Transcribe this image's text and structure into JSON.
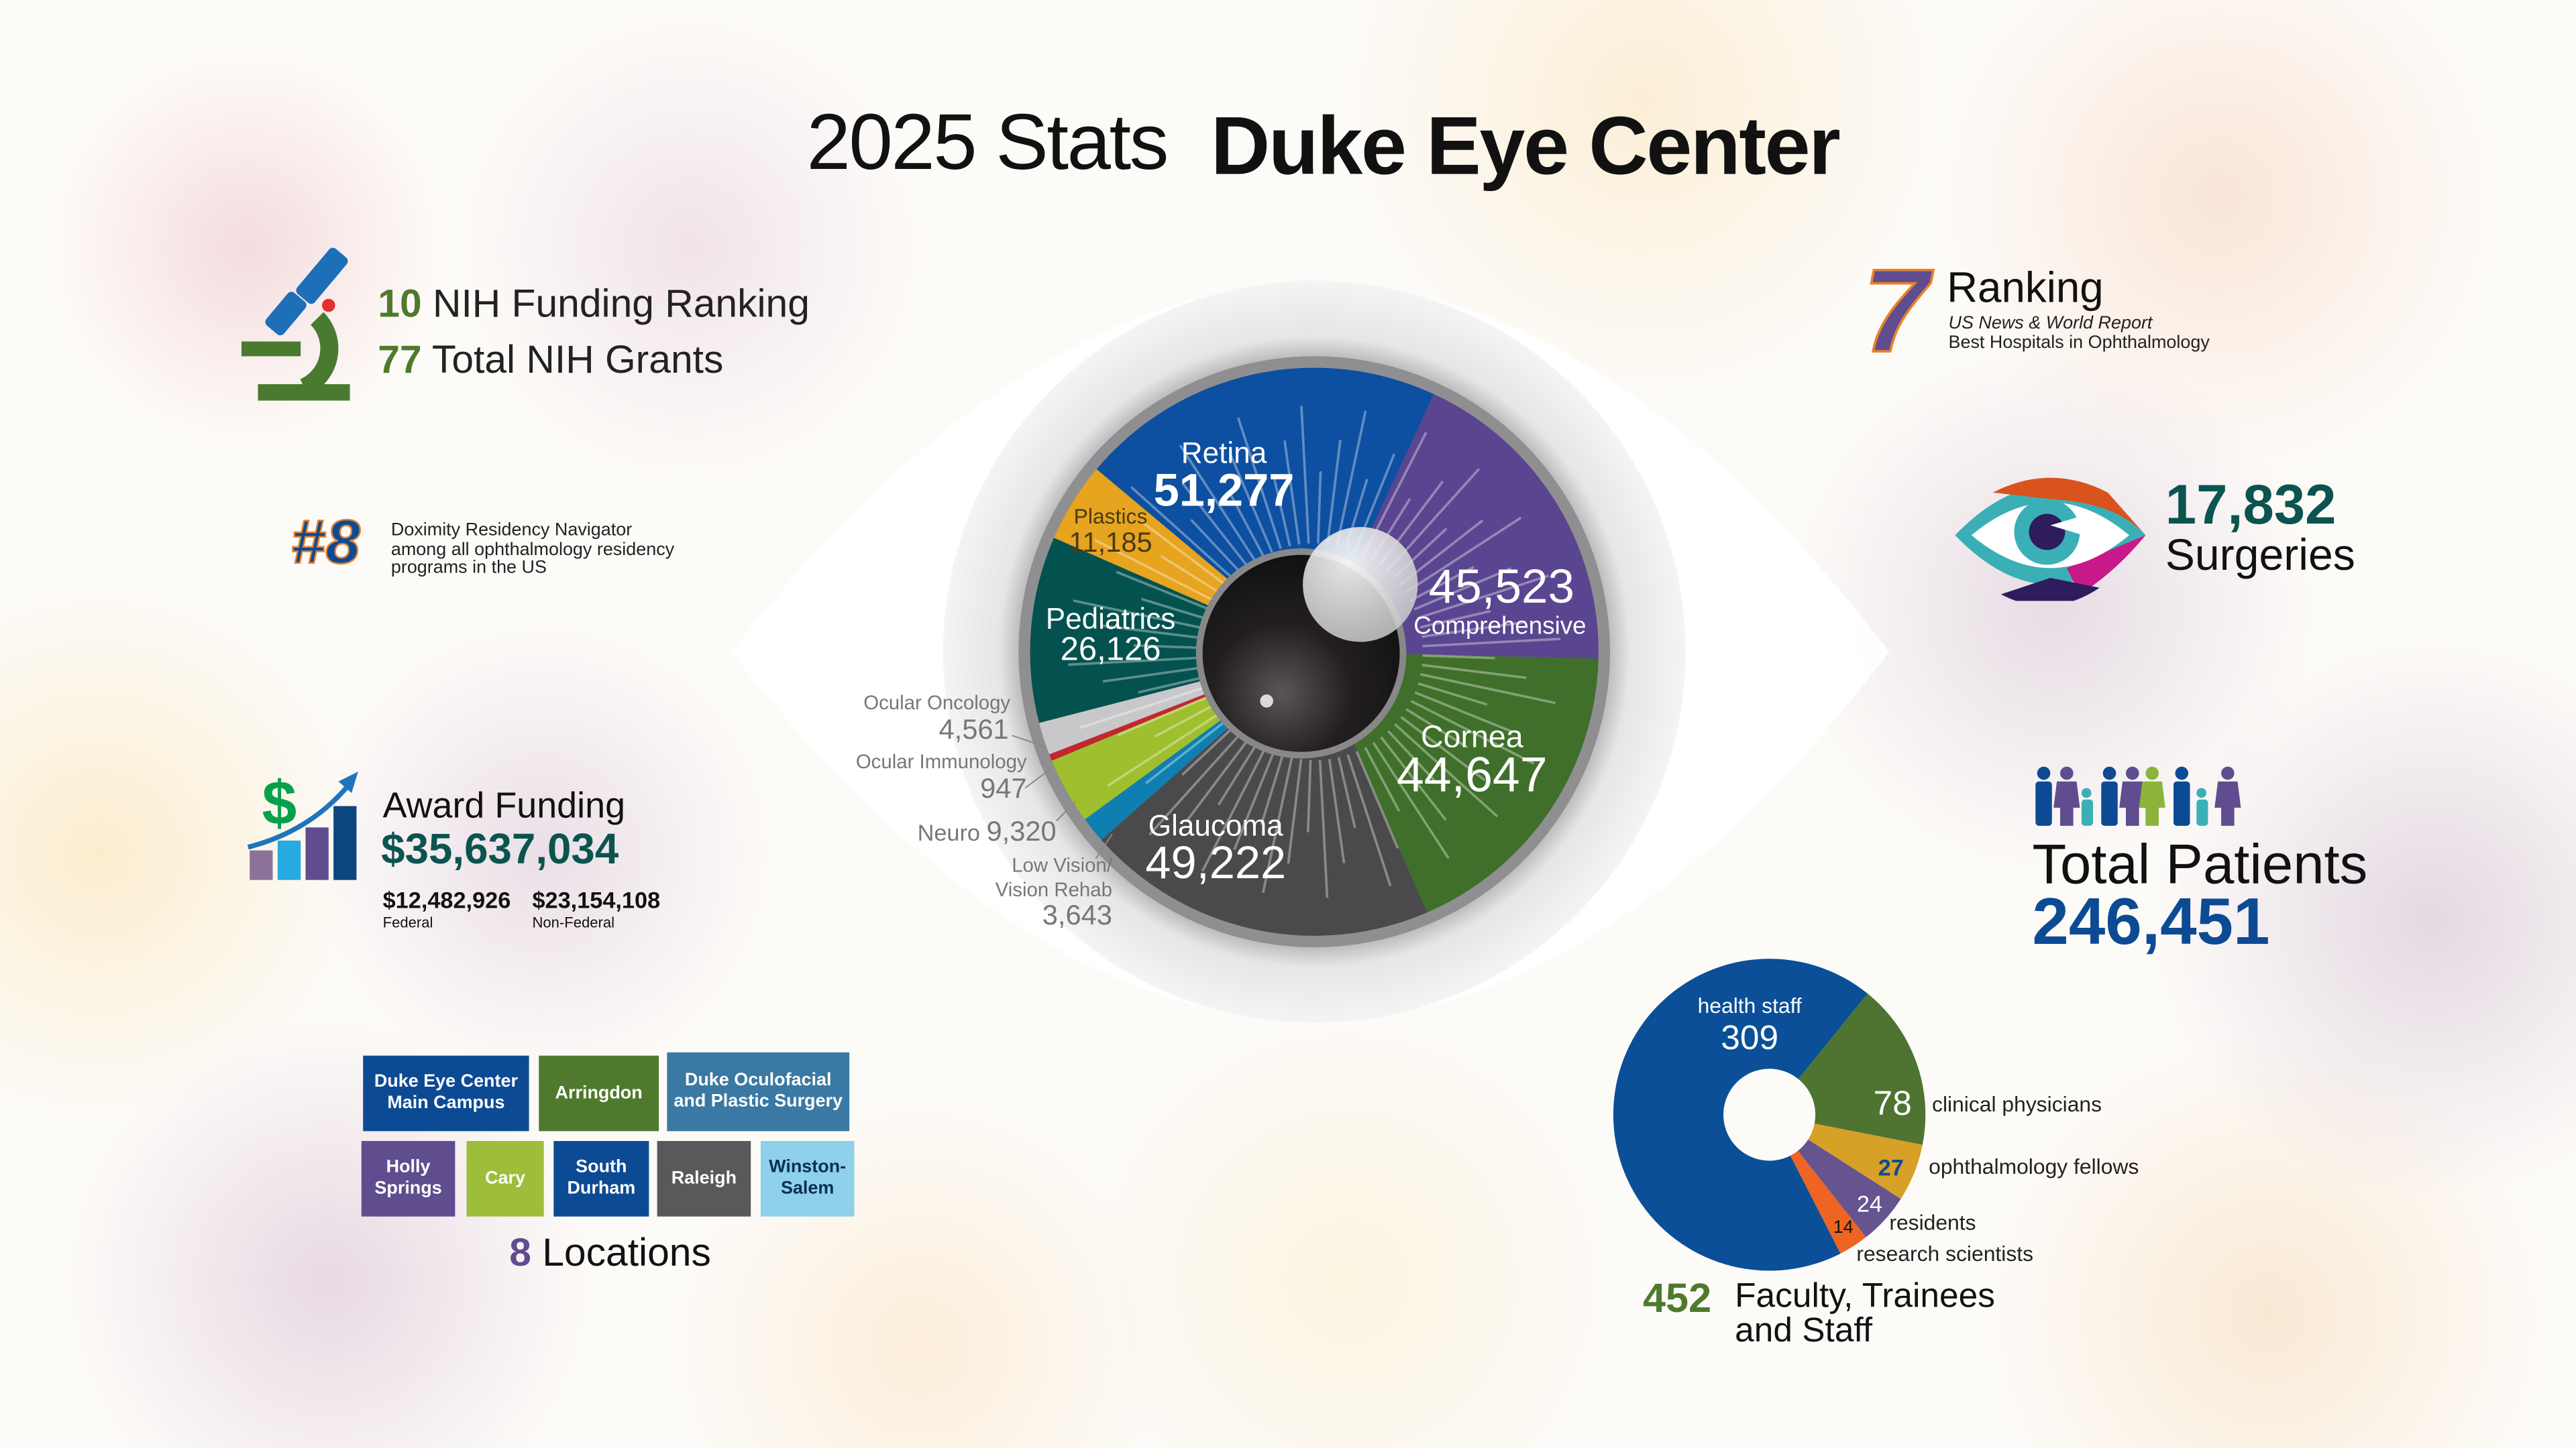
{
  "header": {
    "year_stats": "2025 Stats",
    "org": "Duke Eye Center"
  },
  "nih": {
    "rank": "10",
    "rank_label": "NIH Funding Ranking",
    "grants": "77",
    "grants_label": "Total NIH Grants"
  },
  "doximity": {
    "rank": "#8",
    "line1": "Doximity Residency Navigator",
    "line2": "among all ophthalmology residency",
    "line3": "programs in the US"
  },
  "funding": {
    "label": "Award Funding",
    "total": "$35,637,034",
    "federal": "$12,482,926",
    "federal_label": "Federal",
    "nonfederal": "$23,154,108",
    "nonfederal_label": "Non-Federal"
  },
  "locations": {
    "count": "8",
    "label": "Locations",
    "items": [
      {
        "name": "Duke Eye Center Main Campus",
        "color": "#0d4a94"
      },
      {
        "name": "Arringdon",
        "color": "#4f7a2e"
      },
      {
        "name": "Duke Oculofacial and Plastic Surgery",
        "color": "#3a79a3"
      },
      {
        "name": "Holly Springs",
        "color": "#5f4d8f"
      },
      {
        "name": "Cary",
        "color": "#9dbd3b"
      },
      {
        "name": "South Durham",
        "color": "#0d4a94"
      },
      {
        "name": "Raleigh",
        "color": "#58595b"
      },
      {
        "name": "Winston-Salem",
        "color": "#8fd0ea"
      }
    ]
  },
  "usnews": {
    "rank": "7",
    "label": "Ranking",
    "source": "US News & World Report",
    "category": "Best Hospitals in Ophthalmology"
  },
  "surgeries": {
    "value": "17,832",
    "label": "Surgeries"
  },
  "patients": {
    "label": "Total Patients",
    "value": "246,451"
  },
  "chart_data": [
    {
      "type": "pie",
      "title": "",
      "categories": [
        "Retina",
        "Comprehensive",
        "Cornea",
        "Glaucoma",
        "Low Vision/ Vision Rehab",
        "Neuro",
        "Ocular Immunology",
        "Ocular Oncology",
        "Pediatrics",
        "Plastics"
      ],
      "values": [
        51277,
        45523,
        44647,
        49222,
        3643,
        9320,
        947,
        4561,
        26126,
        11185
      ],
      "labels": [
        "51,277",
        "45,523",
        "44,647",
        "49,222",
        "3,643",
        "9,320",
        "947",
        "4,561",
        "26,126",
        "11,185"
      ],
      "low_vision_lines": [
        "Low Vision/",
        "Vision Rehab"
      ],
      "colors": [
        "#0d4fa0",
        "#5a4590",
        "#3f6f2a",
        "#4a4a4c",
        "#0e7fb0",
        "#9fbf2e",
        "#c0282d",
        "#c8c8ca",
        "#04524f",
        "#e7a41f"
      ]
    },
    {
      "type": "pie",
      "title": "",
      "donut": true,
      "categories": [
        "health staff",
        "clinical physicians",
        "ophthalmology fellows",
        "residents",
        "research scientists"
      ],
      "values": [
        309,
        78,
        27,
        24,
        14
      ],
      "colors": [
        "#0a4f98",
        "#4f7432",
        "#d7a027",
        "#66548f",
        "#ee6423"
      ],
      "total": "452",
      "total_label_1": "Faculty, Trainees",
      "total_label_2": "and Staff"
    }
  ]
}
